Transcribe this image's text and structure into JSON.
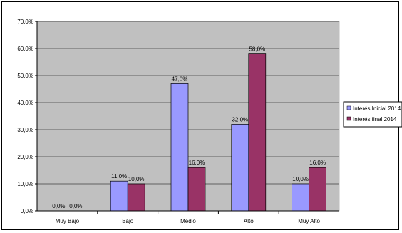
{
  "chart_data": {
    "type": "bar",
    "title": "",
    "xlabel": "",
    "ylabel": "",
    "categories": [
      "Muy Bajo",
      "Bajo",
      "Medio",
      "Alto",
      "Muy Alto"
    ],
    "series": [
      {
        "name": "Interés Inicial 2014",
        "values": [
          0.0,
          11.0,
          47.0,
          32.0,
          10.0
        ],
        "labels": [
          "0,0%",
          "11,0%",
          "47,0%",
          "32,0%",
          "10,0%"
        ],
        "color": "#9999ff"
      },
      {
        "name": "Interés final 2014",
        "values": [
          0.0,
          10.0,
          16.0,
          58.0,
          16.0
        ],
        "labels": [
          "0,0%",
          "10,0%",
          "16,0%",
          "58,0%",
          "16,0%"
        ],
        "color": "#993366"
      }
    ],
    "ylim": [
      0,
      70
    ],
    "yticks": [
      "0,0%",
      "10,0%",
      "20,0%",
      "30,0%",
      "40,0%",
      "50,0%",
      "60,0%",
      "70,0%"
    ],
    "grid": true,
    "plot_background": "#c0c0c0",
    "legend_position": "right"
  }
}
